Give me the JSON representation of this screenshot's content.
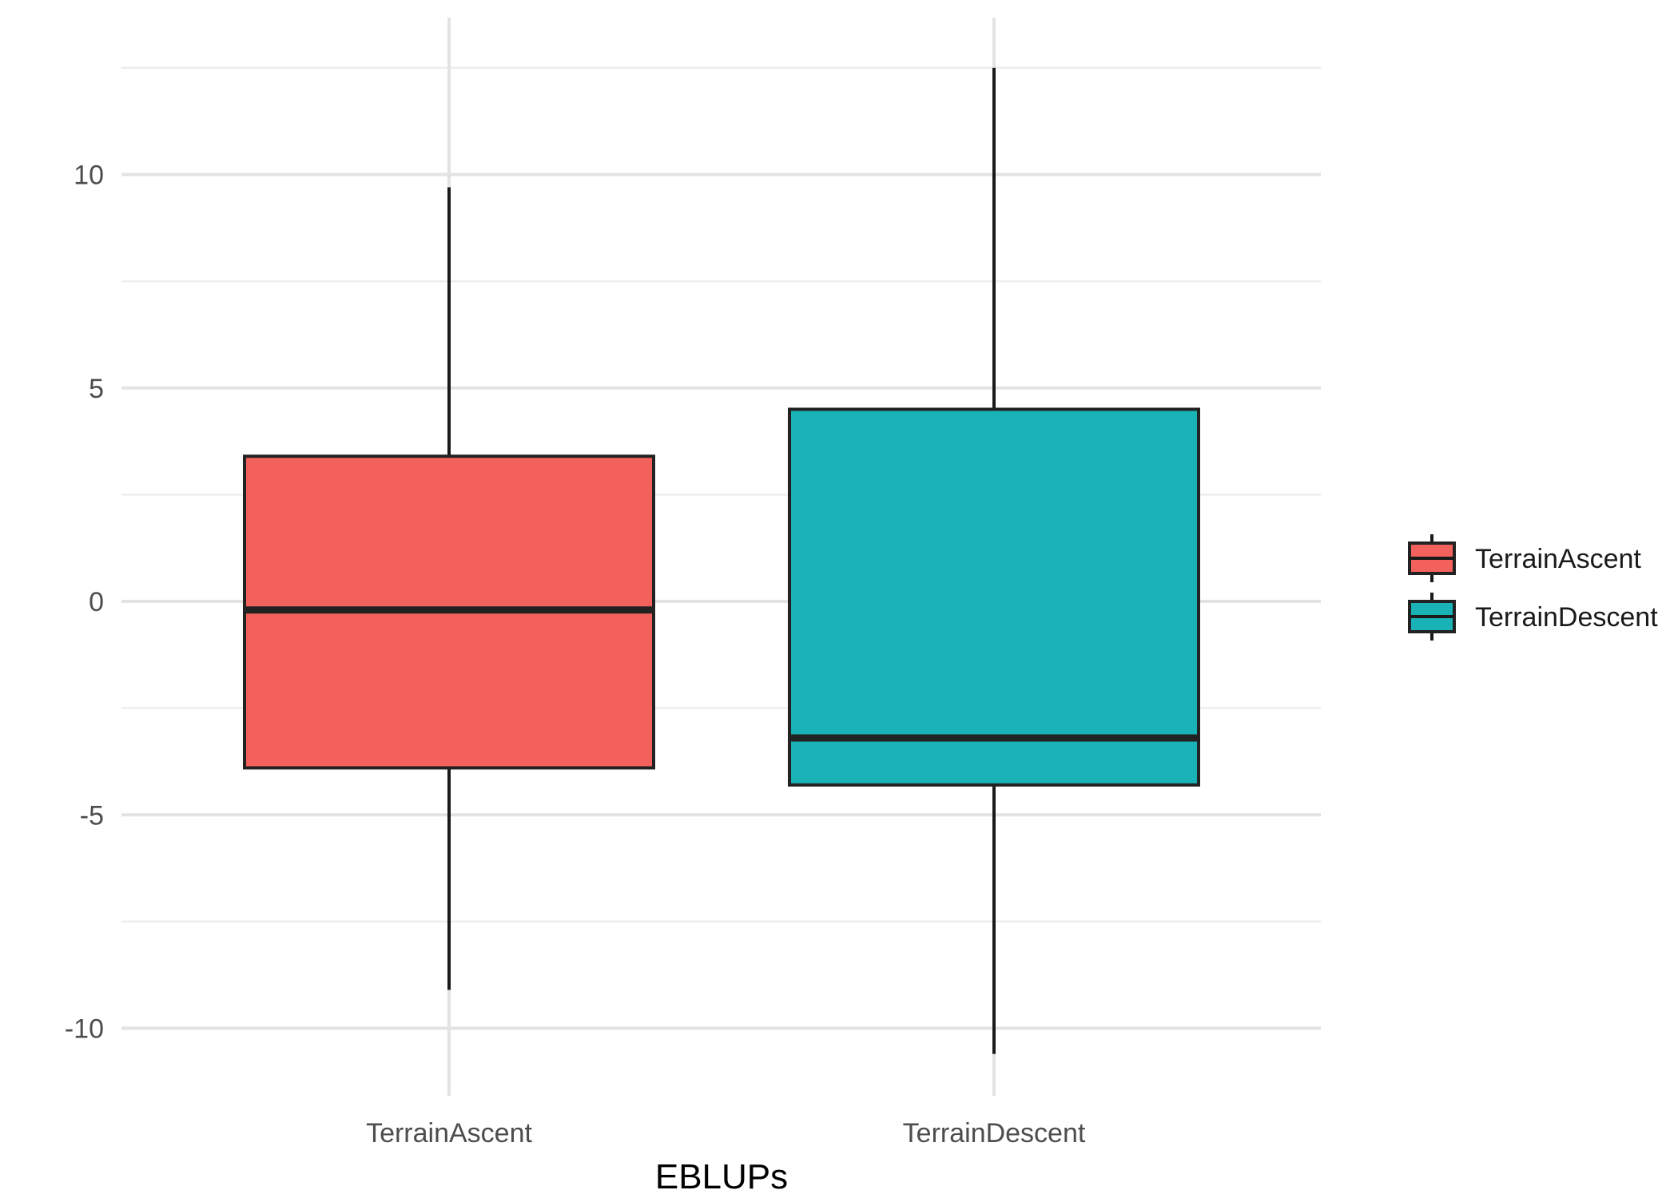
{
  "chart_data": {
    "type": "boxplot",
    "title": "",
    "xlabel": "EBLUPs",
    "ylabel": "",
    "categories": [
      "TerrainAscent",
      "TerrainDescent"
    ],
    "ylim": [
      -11.6,
      14.0
    ],
    "y_major_ticks": [
      -10,
      -5,
      0,
      5,
      10
    ],
    "y_tick_labels": [
      "-10",
      "-5",
      "0",
      "5",
      "10"
    ],
    "y_minor_ticks": [
      -7.5,
      -2.5,
      2.5,
      7.5,
      12.5
    ],
    "grid": true,
    "legend": {
      "position": "right",
      "entries": [
        "TerrainAscent",
        "TerrainDescent"
      ]
    },
    "series": [
      {
        "category": "TerrainAscent",
        "color": "#F2615C",
        "min": -9.1,
        "q1": -3.9,
        "median": -0.2,
        "q3": 3.4,
        "max": 9.7
      },
      {
        "category": "TerrainDescent",
        "color": "#19B3B7",
        "min": -10.6,
        "q1": -4.3,
        "median": -3.2,
        "q3": 4.5,
        "max": 12.5
      }
    ]
  }
}
